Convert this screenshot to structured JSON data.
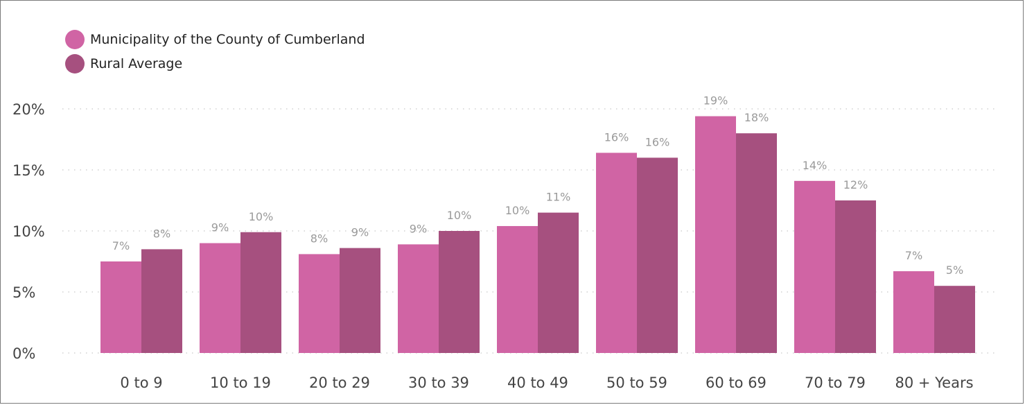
{
  "chart_data": {
    "type": "bar",
    "categories": [
      "0 to 9",
      "10 to 19",
      "20 to 29",
      "30 to 39",
      "40 to 49",
      "50 to 59",
      "60 to 69",
      "70 to 79",
      "80 + Years"
    ],
    "series": [
      {
        "name": "Municipality of the County of Cumberland",
        "color": "#d064a4",
        "values": [
          7.5,
          9.0,
          8.1,
          8.9,
          10.4,
          16.4,
          19.4,
          14.1,
          6.7
        ],
        "labels": [
          "7%",
          "9%",
          "8%",
          "9%",
          "10%",
          "16%",
          "19%",
          "14%",
          "7%"
        ]
      },
      {
        "name": "Rural Average",
        "color": "#a6507f",
        "values": [
          8.5,
          9.9,
          8.6,
          10.0,
          11.5,
          16.0,
          18.0,
          12.5,
          5.5
        ],
        "labels": [
          "8%",
          "10%",
          "9%",
          "10%",
          "11%",
          "16%",
          "18%",
          "12%",
          "5%"
        ]
      }
    ],
    "ylim": [
      0,
      20
    ],
    "yticks": [
      0,
      5,
      10,
      15,
      20
    ],
    "ytick_labels": [
      "0%",
      "5%",
      "10%",
      "15%",
      "20%"
    ],
    "grid": true,
    "legend": "top-left"
  }
}
